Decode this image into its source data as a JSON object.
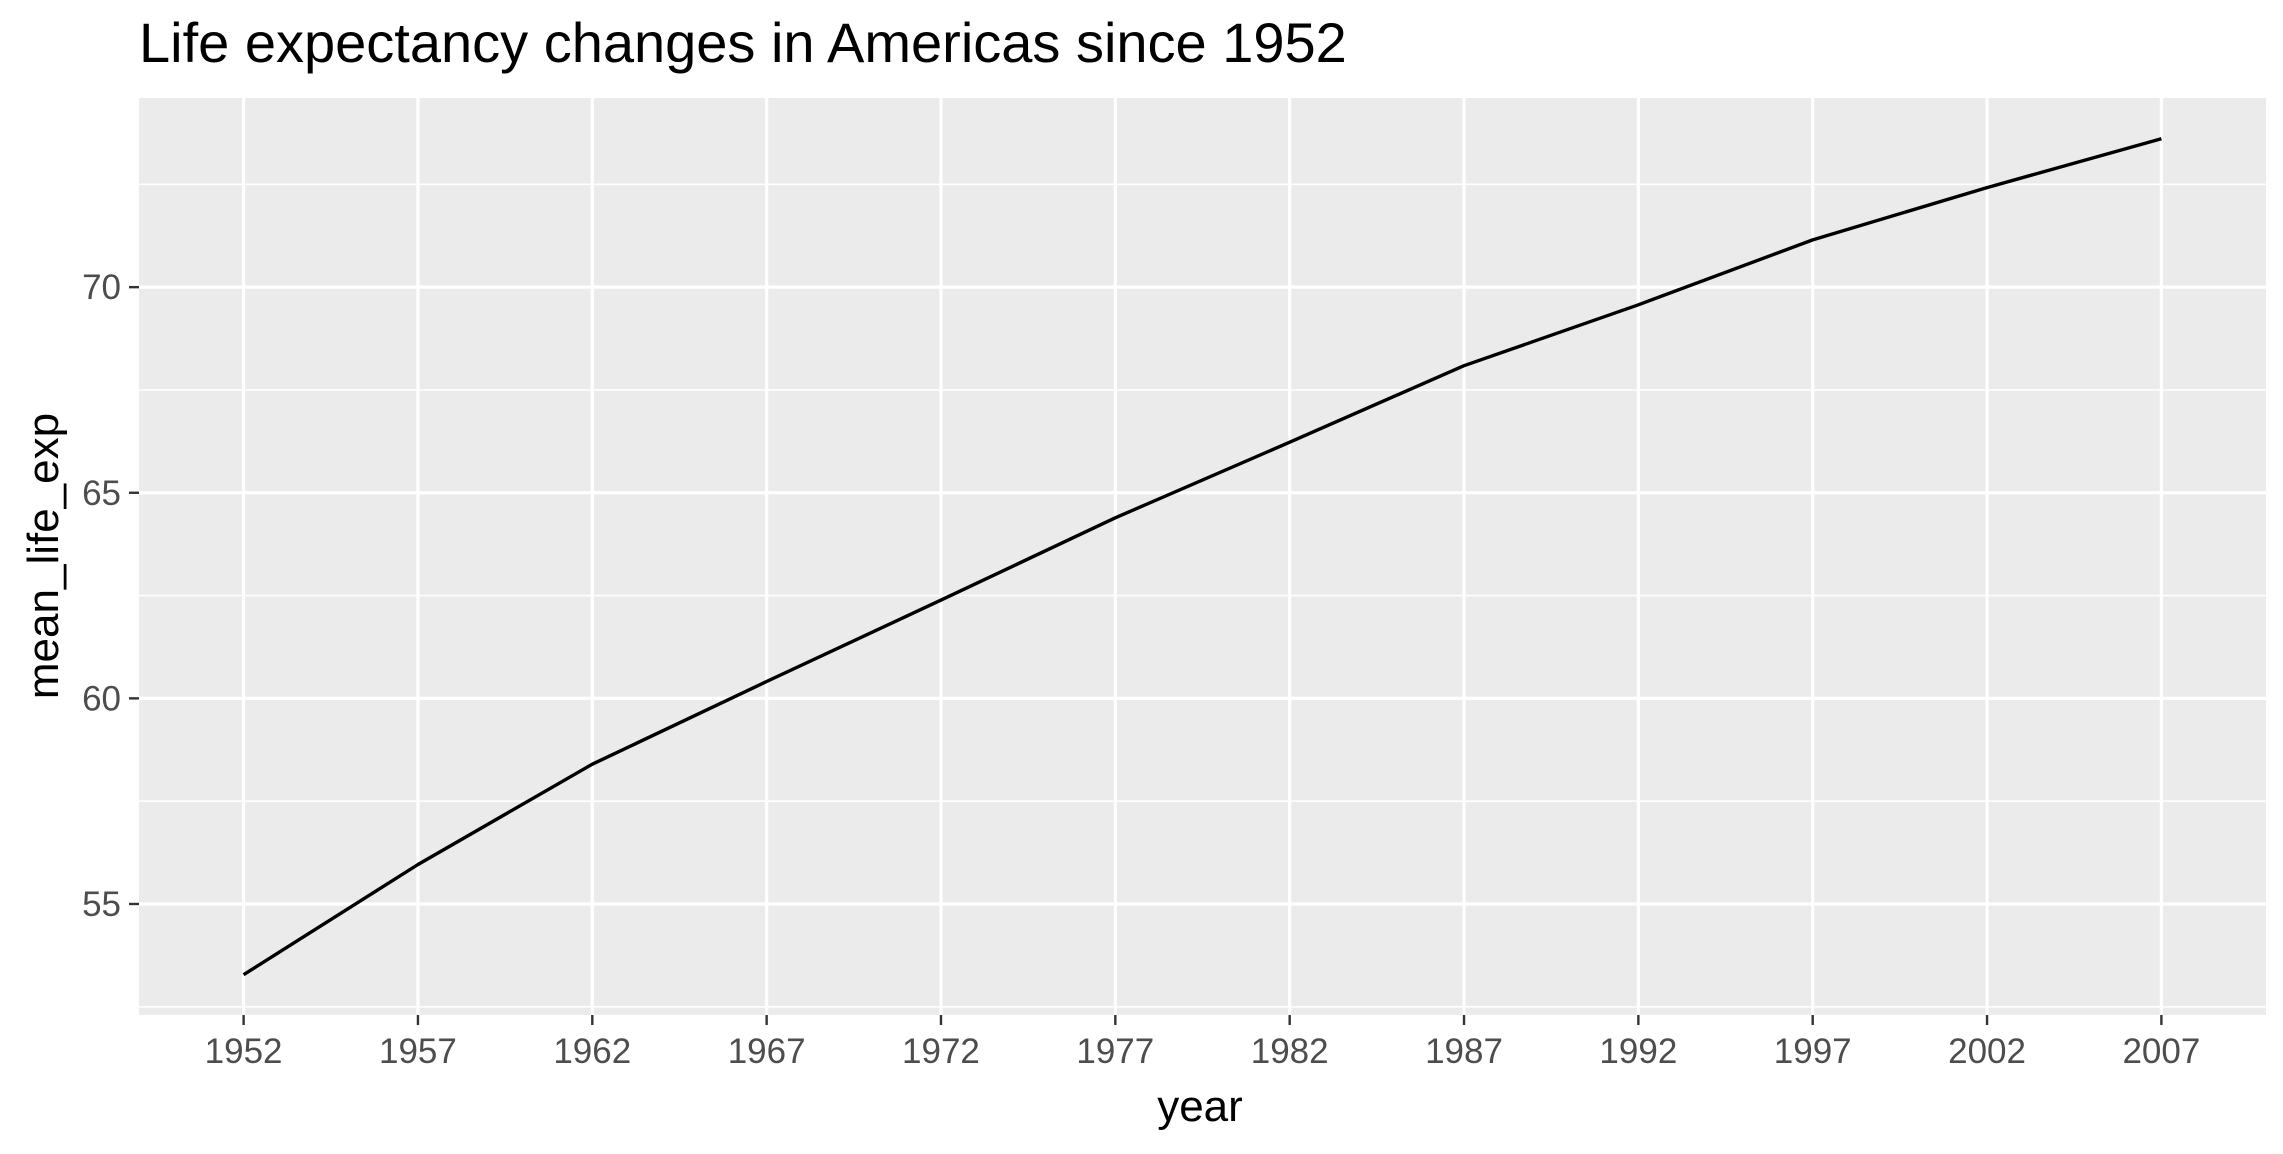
{
  "chart_data": {
    "type": "line",
    "title": "Life expectancy changes in Americas since 1952",
    "xlabel": "year",
    "ylabel": "mean_life_exp",
    "x": [
      1952,
      1957,
      1962,
      1967,
      1972,
      1977,
      1982,
      1987,
      1992,
      1997,
      2002,
      2007
    ],
    "series": [
      {
        "values": [
          53.28,
          55.96,
          58.4,
          60.41,
          62.39,
          64.39,
          66.23,
          68.09,
          69.57,
          71.15,
          72.42,
          73.61
        ]
      }
    ],
    "xlim": [
      1949,
      2010
    ],
    "ylim": [
      52.3,
      74.6
    ],
    "x_ticks": [
      "1952",
      "1957",
      "1962",
      "1967",
      "1972",
      "1977",
      "1982",
      "1987",
      "1992",
      "1997",
      "2002",
      "2007"
    ],
    "y_ticks": [
      "55",
      "60",
      "65",
      "70"
    ],
    "grid": true,
    "legend": "none",
    "colors": {
      "panel_background": "#ebebeb",
      "grid": "#ffffff",
      "line": "#000000",
      "tick_label": "#4d4d4d"
    }
  }
}
